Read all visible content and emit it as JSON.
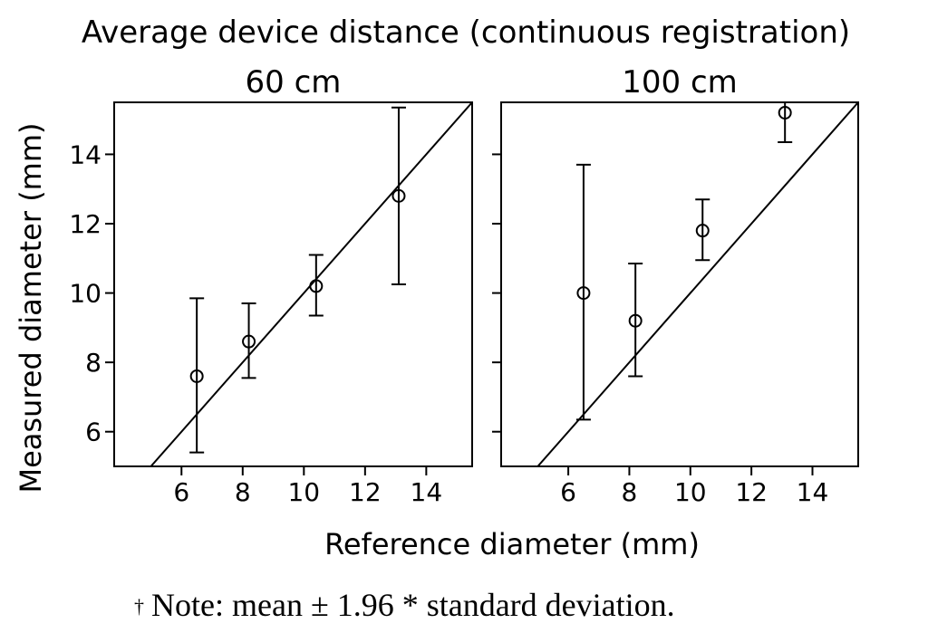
{
  "title": "Average device distance (continuous registration)",
  "xlabel": "Reference diameter (mm)",
  "ylabel": "Measured diameter (mm)",
  "note": {
    "dagger": "†",
    "text": "Note: mean ± 1.96 * standard deviation."
  },
  "chart_data": [
    {
      "type": "scatter",
      "title": "60 cm",
      "xlabel": "Reference diameter (mm)",
      "ylabel": "Measured diameter (mm)",
      "xlim": [
        3.8,
        15.5
      ],
      "ylim": [
        5.0,
        15.5
      ],
      "xticks": [
        6,
        8,
        10,
        12,
        14
      ],
      "yticks": [
        6,
        8,
        10,
        12,
        14
      ],
      "reference_line": "identity (y = x)",
      "grid": false,
      "points": [
        {
          "x": 6.5,
          "y": 7.6,
          "lower": 5.4,
          "upper": 9.85
        },
        {
          "x": 8.2,
          "y": 8.6,
          "lower": 7.55,
          "upper": 9.7
        },
        {
          "x": 10.4,
          "y": 10.2,
          "lower": 9.35,
          "upper": 11.1
        },
        {
          "x": 13.1,
          "y": 12.8,
          "lower": 10.25,
          "upper": 15.35
        }
      ]
    },
    {
      "type": "scatter",
      "title": "100 cm",
      "xlabel": "Reference diameter (mm)",
      "ylabel": "Measured diameter (mm)",
      "xlim": [
        3.8,
        15.5
      ],
      "ylim": [
        5.0,
        15.5
      ],
      "xticks": [
        6,
        8,
        10,
        12,
        14
      ],
      "yticks": [
        6,
        8,
        10,
        12,
        14
      ],
      "reference_line": "identity (y = x)",
      "grid": false,
      "points": [
        {
          "x": 6.5,
          "y": 10.0,
          "lower": 6.35,
          "upper": 13.7
        },
        {
          "x": 8.2,
          "y": 9.2,
          "lower": 7.6,
          "upper": 10.85
        },
        {
          "x": 10.4,
          "y": 11.8,
          "lower": 10.95,
          "upper": 12.7
        },
        {
          "x": 13.1,
          "y": 15.2,
          "lower": 14.35,
          "upper": 16.1
        }
      ]
    }
  ]
}
